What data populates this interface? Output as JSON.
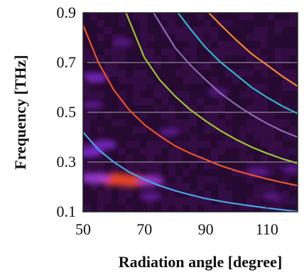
{
  "chart_data": {
    "type": "heatmap",
    "xlabel": "Radiation angle [degree]",
    "ylabel": "Frequency [THz]",
    "xlim": [
      50,
      120
    ],
    "ylim": [
      0.1,
      0.9
    ],
    "x_ticks": [
      50,
      70,
      90,
      110
    ],
    "y_ticks": [
      0.1,
      0.3,
      0.5,
      0.7,
      0.9
    ],
    "x_tick_labels": [
      "50",
      "70",
      "90",
      "110"
    ],
    "y_tick_labels": [
      "0.1",
      "0.3",
      "0.5",
      "0.7",
      "0.9"
    ],
    "grid": "horizontal lines",
    "colormap_background": "#2a0a35",
    "heatmap_hotspots": [
      {
        "x": 61,
        "y": 0.23,
        "intensity": 1.0
      },
      {
        "x": 66,
        "y": 0.225,
        "intensity": 0.95
      },
      {
        "x": 54,
        "y": 0.235,
        "intensity": 0.7
      },
      {
        "x": 72,
        "y": 0.225,
        "intensity": 0.6
      },
      {
        "x": 52,
        "y": 0.34,
        "intensity": 0.55
      },
      {
        "x": 57,
        "y": 0.37,
        "intensity": 0.45
      },
      {
        "x": 54,
        "y": 0.64,
        "intensity": 0.45
      },
      {
        "x": 53,
        "y": 0.53,
        "intensity": 0.35
      },
      {
        "x": 78,
        "y": 0.42,
        "intensity": 0.3
      },
      {
        "x": 72,
        "y": 0.16,
        "intensity": 0.35
      },
      {
        "x": 107,
        "y": 0.26,
        "intensity": 0.35
      },
      {
        "x": 112,
        "y": 0.16,
        "intensity": 0.25
      },
      {
        "x": 118,
        "y": 0.27,
        "intensity": 0.3
      },
      {
        "x": 94,
        "y": 0.58,
        "intensity": 0.25
      },
      {
        "x": 63,
        "y": 0.78,
        "intensity": 0.25
      }
    ],
    "series": [
      {
        "color": "#4aa3e8",
        "x": [
          50,
          55,
          60,
          65,
          70,
          75,
          80,
          85,
          90,
          95,
          100,
          105,
          110,
          115,
          120
        ],
        "y": [
          0.42,
          0.35,
          0.3,
          0.26,
          0.23,
          0.205,
          0.185,
          0.168,
          0.153,
          0.142,
          0.132,
          0.123,
          0.115,
          0.108,
          0.101
        ]
      },
      {
        "color": "#e8552c",
        "x": [
          50,
          55,
          60,
          65,
          70,
          75,
          80,
          85,
          90,
          95,
          100,
          105,
          110,
          115,
          120
        ],
        "y": [
          0.85,
          0.7,
          0.59,
          0.51,
          0.45,
          0.405,
          0.365,
          0.335,
          0.31,
          0.285,
          0.265,
          0.248,
          0.232,
          0.218,
          0.205
        ]
      },
      {
        "color": "#9bc23a",
        "x": [
          64,
          70,
          75,
          80,
          85,
          90,
          95,
          100,
          105,
          110,
          115,
          120
        ],
        "y": [
          0.9,
          0.72,
          0.63,
          0.565,
          0.51,
          0.465,
          0.425,
          0.39,
          0.36,
          0.335,
          0.313,
          0.295
        ]
      },
      {
        "color": "#8a6bb0",
        "x": [
          73,
          80,
          85,
          90,
          95,
          100,
          105,
          110,
          115,
          120
        ],
        "y": [
          0.9,
          0.76,
          0.69,
          0.63,
          0.575,
          0.53,
          0.49,
          0.455,
          0.425,
          0.4
        ]
      },
      {
        "color": "#2fb6c9",
        "x": [
          81,
          85,
          90,
          95,
          100,
          105,
          110,
          115,
          120
        ],
        "y": [
          0.9,
          0.835,
          0.76,
          0.7,
          0.65,
          0.6,
          0.56,
          0.525,
          0.495
        ]
      },
      {
        "color": "#ee8a2e",
        "x": [
          91,
          95,
          100,
          105,
          110,
          115,
          120
        ],
        "y": [
          0.9,
          0.85,
          0.79,
          0.735,
          0.69,
          0.645,
          0.605
        ]
      }
    ]
  }
}
